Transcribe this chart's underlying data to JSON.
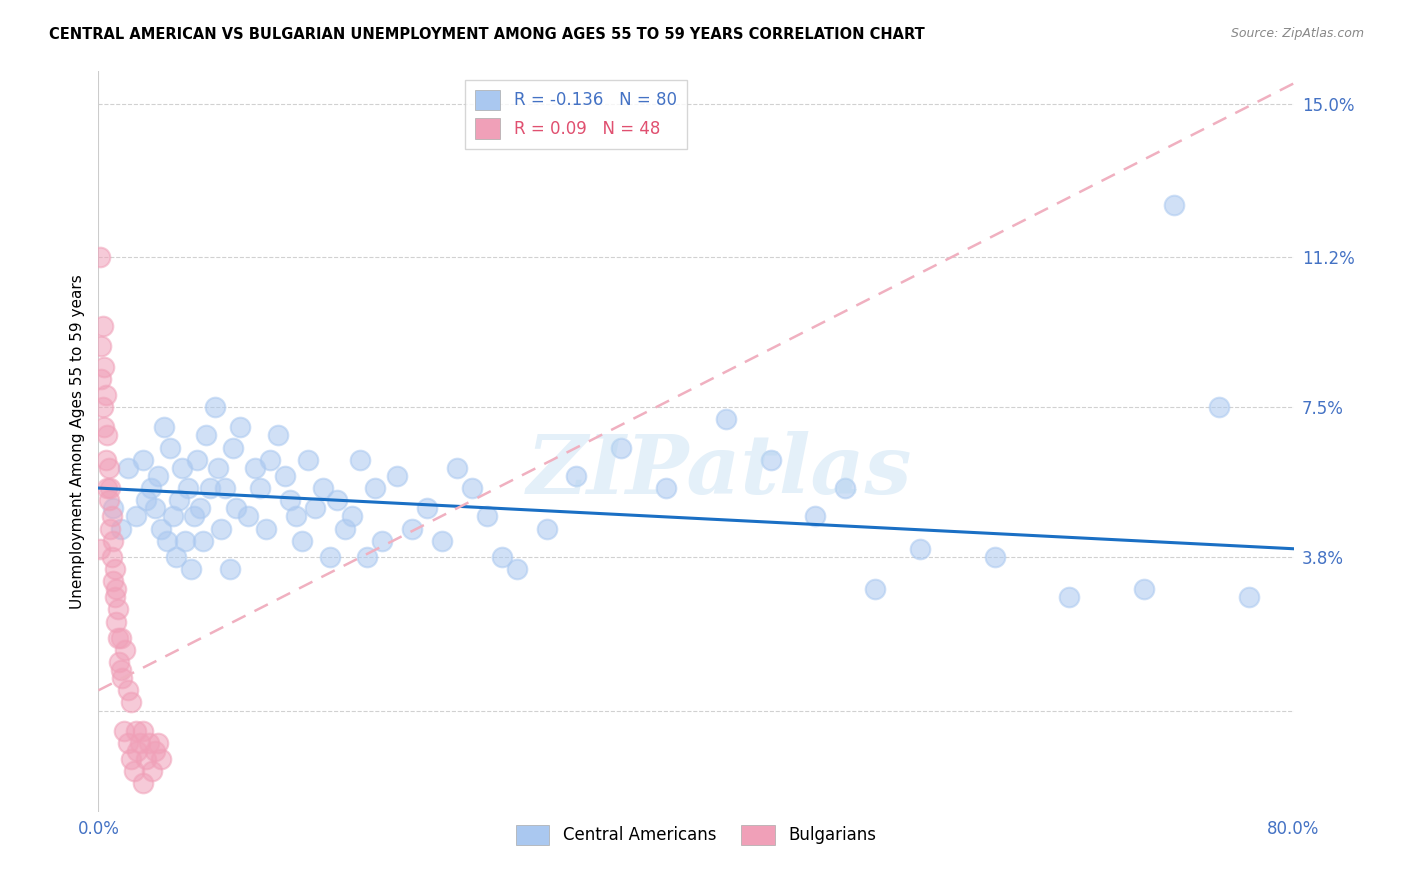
{
  "title": "CENTRAL AMERICAN VS BULGARIAN UNEMPLOYMENT AMONG AGES 55 TO 59 YEARS CORRELATION CHART",
  "source": "Source: ZipAtlas.com",
  "ylabel": "Unemployment Among Ages 55 to 59 years",
  "xlim": [
    0.0,
    0.8
  ],
  "ylim": [
    -0.025,
    0.158
  ],
  "blue_R": -0.136,
  "blue_N": 80,
  "pink_R": 0.09,
  "pink_N": 48,
  "blue_color": "#aac8f0",
  "pink_color": "#f0a0b8",
  "trend_blue_color": "#1a6fc4",
  "trend_pink_color": "#f0b0c0",
  "watermark": "ZIPatlas",
  "blue_trend_start_y": 0.055,
  "blue_trend_end_y": 0.04,
  "pink_trend_start_y": 0.005,
  "pink_trend_end_y": 0.155,
  "ytick_positions": [
    0.0,
    0.038,
    0.075,
    0.112,
    0.15
  ],
  "ytick_labels": [
    "",
    "3.8%",
    "7.5%",
    "11.2%",
    "15.0%"
  ],
  "xtick_positions": [
    0.0,
    0.8
  ],
  "xtick_labels": [
    "0.0%",
    "80.0%"
  ],
  "blue_scatter_x": [
    0.01,
    0.015,
    0.02,
    0.025,
    0.03,
    0.032,
    0.035,
    0.038,
    0.04,
    0.042,
    0.044,
    0.046,
    0.048,
    0.05,
    0.052,
    0.054,
    0.056,
    0.058,
    0.06,
    0.062,
    0.064,
    0.066,
    0.068,
    0.07,
    0.072,
    0.075,
    0.078,
    0.08,
    0.082,
    0.085,
    0.088,
    0.09,
    0.092,
    0.095,
    0.1,
    0.105,
    0.108,
    0.112,
    0.115,
    0.12,
    0.125,
    0.128,
    0.132,
    0.136,
    0.14,
    0.145,
    0.15,
    0.155,
    0.16,
    0.165,
    0.17,
    0.175,
    0.18,
    0.185,
    0.19,
    0.2,
    0.21,
    0.22,
    0.23,
    0.24,
    0.25,
    0.26,
    0.27,
    0.28,
    0.3,
    0.32,
    0.35,
    0.38,
    0.42,
    0.45,
    0.48,
    0.5,
    0.52,
    0.55,
    0.6,
    0.65,
    0.7,
    0.72,
    0.75,
    0.77
  ],
  "blue_scatter_y": [
    0.05,
    0.045,
    0.06,
    0.048,
    0.062,
    0.052,
    0.055,
    0.05,
    0.058,
    0.045,
    0.07,
    0.042,
    0.065,
    0.048,
    0.038,
    0.052,
    0.06,
    0.042,
    0.055,
    0.035,
    0.048,
    0.062,
    0.05,
    0.042,
    0.068,
    0.055,
    0.075,
    0.06,
    0.045,
    0.055,
    0.035,
    0.065,
    0.05,
    0.07,
    0.048,
    0.06,
    0.055,
    0.045,
    0.062,
    0.068,
    0.058,
    0.052,
    0.048,
    0.042,
    0.062,
    0.05,
    0.055,
    0.038,
    0.052,
    0.045,
    0.048,
    0.062,
    0.038,
    0.055,
    0.042,
    0.058,
    0.045,
    0.05,
    0.042,
    0.06,
    0.055,
    0.048,
    0.038,
    0.035,
    0.045,
    0.058,
    0.065,
    0.055,
    0.072,
    0.062,
    0.048,
    0.055,
    0.03,
    0.04,
    0.038,
    0.028,
    0.03,
    0.125,
    0.075,
    0.028
  ],
  "pink_scatter_x": [
    0.001,
    0.001,
    0.002,
    0.002,
    0.003,
    0.003,
    0.004,
    0.004,
    0.005,
    0.005,
    0.006,
    0.006,
    0.007,
    0.007,
    0.008,
    0.008,
    0.009,
    0.009,
    0.01,
    0.01,
    0.011,
    0.011,
    0.012,
    0.012,
    0.013,
    0.013,
    0.014,
    0.015,
    0.015,
    0.016,
    0.017,
    0.018,
    0.02,
    0.02,
    0.022,
    0.022,
    0.024,
    0.025,
    0.026,
    0.028,
    0.03,
    0.03,
    0.032,
    0.034,
    0.036,
    0.038,
    0.04,
    0.042
  ],
  "pink_scatter_y": [
    0.112,
    0.04,
    0.09,
    0.082,
    0.095,
    0.075,
    0.07,
    0.085,
    0.062,
    0.078,
    0.055,
    0.068,
    0.052,
    0.06,
    0.045,
    0.055,
    0.038,
    0.048,
    0.032,
    0.042,
    0.028,
    0.035,
    0.022,
    0.03,
    0.018,
    0.025,
    0.012,
    0.01,
    0.018,
    0.008,
    -0.005,
    0.015,
    -0.008,
    0.005,
    -0.012,
    0.002,
    -0.015,
    -0.005,
    -0.01,
    -0.008,
    -0.018,
    -0.005,
    -0.012,
    -0.008,
    -0.015,
    -0.01,
    -0.008,
    -0.012
  ]
}
